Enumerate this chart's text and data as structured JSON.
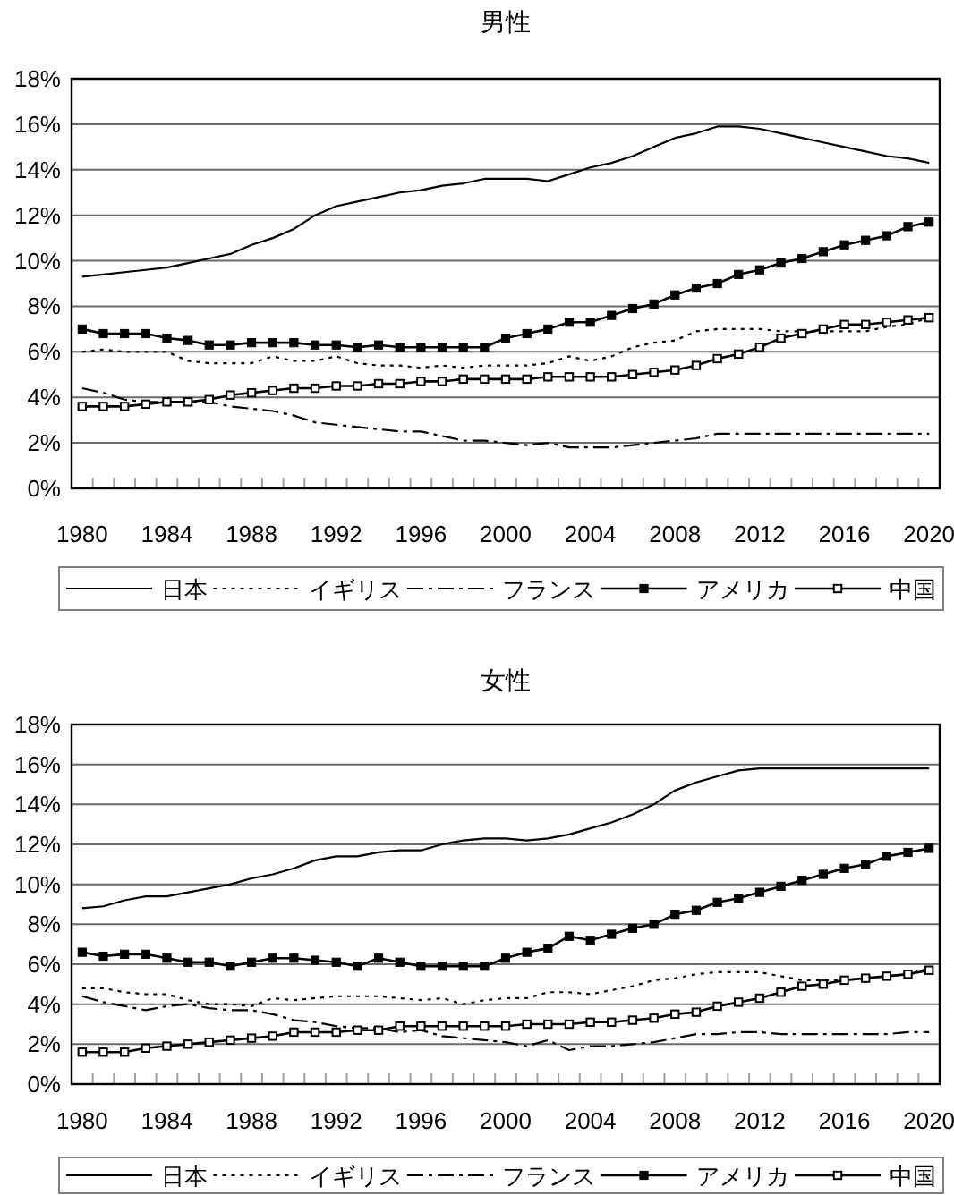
{
  "chart_data": [
    {
      "type": "line",
      "title": "男性",
      "categories": [
        "1980",
        null,
        null,
        null,
        "1984",
        null,
        null,
        null,
        "1988",
        null,
        null,
        null,
        "1992",
        null,
        null,
        null,
        "1996",
        null,
        null,
        null,
        "2000",
        null,
        null,
        null,
        "2004",
        null,
        null,
        null,
        "2008",
        null,
        null,
        null,
        "2012",
        null,
        null,
        null,
        "2016",
        null,
        null,
        null,
        "2020"
      ],
      "ylim": [
        0,
        18
      ],
      "yticks": [
        {
          "value": 0,
          "label": "0%"
        },
        {
          "value": 2,
          "label": "2%"
        },
        {
          "value": 4,
          "label": "4%"
        },
        {
          "value": 6,
          "label": "6%"
        },
        {
          "value": 8,
          "label": "8%"
        },
        {
          "value": 10,
          "label": "10%"
        },
        {
          "value": 12,
          "label": "12%"
        },
        {
          "value": 14,
          "label": "14%"
        },
        {
          "value": 16,
          "label": "16%"
        },
        {
          "value": 18,
          "label": "18%"
        }
      ],
      "grid": "y",
      "legend": "bottom",
      "series": [
        {
          "name": "日本",
          "color": "#000000",
          "line_style": "solid",
          "marker": "none",
          "values": [
            9.3,
            9.4,
            9.5,
            9.6,
            9.7,
            9.9,
            10.1,
            10.3,
            10.7,
            11.0,
            11.4,
            12.0,
            12.4,
            12.6,
            12.8,
            13.0,
            13.1,
            13.3,
            13.4,
            13.6,
            13.6,
            13.6,
            13.5,
            13.8,
            14.1,
            14.3,
            14.6,
            15.0,
            15.4,
            15.6,
            15.9,
            15.9,
            15.8,
            15.6,
            15.4,
            15.2,
            15.0,
            14.8,
            14.6,
            14.5,
            14.3
          ]
        },
        {
          "name": "イギリス",
          "color": "#000000",
          "line_style": "dotted",
          "marker": "none",
          "values": [
            6.0,
            6.1,
            6.0,
            6.0,
            6.0,
            5.6,
            5.5,
            5.5,
            5.5,
            5.8,
            5.6,
            5.6,
            5.8,
            5.5,
            5.4,
            5.4,
            5.3,
            5.4,
            5.3,
            5.4,
            5.4,
            5.4,
            5.5,
            5.8,
            5.6,
            5.8,
            6.2,
            6.4,
            6.5,
            6.9,
            7.0,
            7.0,
            7.0,
            6.9,
            6.9,
            6.9,
            6.9,
            6.9,
            7.1,
            7.2,
            7.5
          ]
        },
        {
          "name": "フランス",
          "color": "#000000",
          "line_style": "dashdot",
          "marker": "none",
          "values": [
            4.4,
            4.2,
            3.9,
            3.8,
            3.8,
            3.8,
            3.8,
            3.6,
            3.5,
            3.4,
            3.2,
            2.9,
            2.8,
            2.7,
            2.6,
            2.5,
            2.5,
            2.3,
            2.1,
            2.1,
            2.0,
            1.9,
            2.0,
            1.8,
            1.8,
            1.8,
            1.9,
            2.0,
            2.1,
            2.2,
            2.4,
            2.4,
            2.4,
            2.4,
            2.4,
            2.4,
            2.4,
            2.4,
            2.4,
            2.4,
            2.4
          ]
        },
        {
          "name": "アメリカ",
          "color": "#000000",
          "line_style": "solid",
          "marker": "square",
          "values": [
            7.0,
            6.8,
            6.8,
            6.8,
            6.6,
            6.5,
            6.3,
            6.3,
            6.4,
            6.4,
            6.4,
            6.3,
            6.3,
            6.2,
            6.3,
            6.2,
            6.2,
            6.2,
            6.2,
            6.2,
            6.6,
            6.8,
            7.0,
            7.3,
            7.3,
            7.6,
            7.9,
            8.1,
            8.5,
            8.8,
            9.0,
            9.4,
            9.6,
            9.9,
            10.1,
            10.4,
            10.7,
            10.9,
            11.1,
            11.5,
            11.7
          ]
        },
        {
          "name": "中国",
          "color": "#000000",
          "line_style": "solid",
          "marker": "square-open",
          "values": [
            3.6,
            3.6,
            3.6,
            3.7,
            3.8,
            3.8,
            3.9,
            4.1,
            4.2,
            4.3,
            4.4,
            4.4,
            4.5,
            4.5,
            4.6,
            4.6,
            4.7,
            4.7,
            4.8,
            4.8,
            4.8,
            4.8,
            4.9,
            4.9,
            4.9,
            4.9,
            5.0,
            5.1,
            5.2,
            5.4,
            5.7,
            5.9,
            6.2,
            6.6,
            6.8,
            7.0,
            7.2,
            7.2,
            7.3,
            7.4,
            7.5
          ]
        }
      ]
    },
    {
      "type": "line",
      "title": "女性",
      "categories": [
        "1980",
        null,
        null,
        null,
        "1984",
        null,
        null,
        null,
        "1988",
        null,
        null,
        null,
        "1992",
        null,
        null,
        null,
        "1996",
        null,
        null,
        null,
        "2000",
        null,
        null,
        null,
        "2004",
        null,
        null,
        null,
        "2008",
        null,
        null,
        null,
        "2012",
        null,
        null,
        null,
        "2016",
        null,
        null,
        null,
        "2020"
      ],
      "ylim": [
        0,
        18
      ],
      "yticks": [
        {
          "value": 0,
          "label": "0%"
        },
        {
          "value": 2,
          "label": "2%"
        },
        {
          "value": 4,
          "label": "4%"
        },
        {
          "value": 6,
          "label": "6%"
        },
        {
          "value": 8,
          "label": "8%"
        },
        {
          "value": 10,
          "label": "10%"
        },
        {
          "value": 12,
          "label": "12%"
        },
        {
          "value": 14,
          "label": "14%"
        },
        {
          "value": 16,
          "label": "16%"
        },
        {
          "value": 18,
          "label": "18%"
        }
      ],
      "grid": "y",
      "legend": "bottom",
      "series": [
        {
          "name": "日本",
          "color": "#000000",
          "line_style": "solid",
          "marker": "none",
          "values": [
            8.8,
            8.9,
            9.2,
            9.4,
            9.4,
            9.6,
            9.8,
            10.0,
            10.3,
            10.5,
            10.8,
            11.2,
            11.4,
            11.4,
            11.6,
            11.7,
            11.7,
            12.0,
            12.2,
            12.3,
            12.3,
            12.2,
            12.3,
            12.5,
            12.8,
            13.1,
            13.5,
            14.0,
            14.7,
            15.1,
            15.4,
            15.7,
            15.8,
            15.8,
            15.8,
            15.8,
            15.8,
            15.8,
            15.8,
            15.8,
            15.8
          ]
        },
        {
          "name": "イギリス",
          "color": "#000000",
          "line_style": "dotted",
          "marker": "none",
          "values": [
            4.8,
            4.8,
            4.6,
            4.5,
            4.5,
            4.2,
            4.0,
            4.0,
            3.9,
            4.3,
            4.2,
            4.3,
            4.4,
            4.4,
            4.4,
            4.3,
            4.2,
            4.3,
            4.0,
            4.2,
            4.3,
            4.3,
            4.6,
            4.6,
            4.5,
            4.7,
            4.9,
            5.2,
            5.3,
            5.5,
            5.6,
            5.6,
            5.6,
            5.4,
            5.2,
            5.2,
            5.2,
            5.3,
            5.4,
            5.5,
            5.8
          ]
        },
        {
          "name": "フランス",
          "color": "#000000",
          "line_style": "dashdot",
          "marker": "none",
          "values": [
            4.4,
            4.1,
            3.9,
            3.7,
            3.9,
            4.0,
            3.8,
            3.7,
            3.7,
            3.5,
            3.2,
            3.1,
            2.9,
            2.8,
            2.8,
            2.6,
            2.7,
            2.4,
            2.3,
            2.2,
            2.1,
            1.9,
            2.2,
            1.7,
            1.9,
            1.9,
            2.0,
            2.1,
            2.3,
            2.5,
            2.5,
            2.6,
            2.6,
            2.5,
            2.5,
            2.5,
            2.5,
            2.5,
            2.5,
            2.6,
            2.6
          ]
        },
        {
          "name": "アメリカ",
          "color": "#000000",
          "line_style": "solid",
          "marker": "square",
          "values": [
            6.6,
            6.4,
            6.5,
            6.5,
            6.3,
            6.1,
            6.1,
            5.9,
            6.1,
            6.3,
            6.3,
            6.2,
            6.1,
            5.9,
            6.3,
            6.1,
            5.9,
            5.9,
            5.9,
            5.9,
            6.3,
            6.6,
            6.8,
            7.4,
            7.2,
            7.5,
            7.8,
            8.0,
            8.5,
            8.7,
            9.1,
            9.3,
            9.6,
            9.9,
            10.2,
            10.5,
            10.8,
            11.0,
            11.4,
            11.6,
            11.8
          ]
        },
        {
          "name": "中国",
          "color": "#000000",
          "line_style": "solid",
          "marker": "square-open",
          "values": [
            1.6,
            1.6,
            1.6,
            1.8,
            1.9,
            2.0,
            2.1,
            2.2,
            2.3,
            2.4,
            2.6,
            2.6,
            2.6,
            2.7,
            2.7,
            2.9,
            2.9,
            2.9,
            2.9,
            2.9,
            2.9,
            3.0,
            3.0,
            3.0,
            3.1,
            3.1,
            3.2,
            3.3,
            3.5,
            3.6,
            3.9,
            4.1,
            4.3,
            4.6,
            4.9,
            5.0,
            5.2,
            5.3,
            5.4,
            5.5,
            5.7
          ]
        }
      ]
    }
  ]
}
